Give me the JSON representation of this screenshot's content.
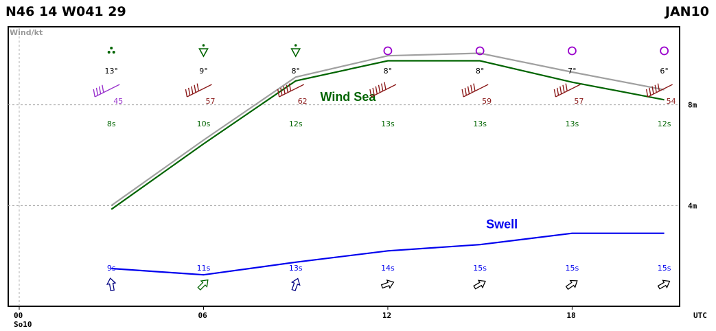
{
  "header": {
    "position": "N46 14 W041 29",
    "date": "JAN10"
  },
  "chart_data": {
    "type": "line",
    "panel_label": "Wind/kt",
    "x_ticks": [
      {
        "hour": 0,
        "label": "00",
        "sublabel": "So10"
      },
      {
        "hour": 6,
        "label": "06",
        "sublabel": ""
      },
      {
        "hour": 12,
        "label": "12",
        "sublabel": ""
      },
      {
        "hour": 18,
        "label": "18",
        "sublabel": ""
      }
    ],
    "x_unit_label": "UTC",
    "x_range": [
      0,
      21.5
    ],
    "y_range": [
      0,
      11.1
    ],
    "y_ticks": [
      {
        "value": 4,
        "label": "4m"
      },
      {
        "value": 8,
        "label": "8m"
      }
    ],
    "grid": "dashed",
    "times": [
      3,
      6,
      9,
      12,
      15,
      18,
      21
    ],
    "series": [
      {
        "name": "",
        "color": "#a0a0a0",
        "points": [
          [
            3,
            4.0
          ],
          [
            6,
            6.6
          ],
          [
            9,
            9.1
          ],
          [
            12,
            9.95
          ],
          [
            15,
            10.05
          ],
          [
            18,
            9.3
          ],
          [
            21,
            8.6
          ]
        ]
      },
      {
        "name": "Wind Sea",
        "color": "#006400",
        "points": [
          [
            3,
            3.85
          ],
          [
            6,
            6.45
          ],
          [
            9,
            8.95
          ],
          [
            12,
            9.75
          ],
          [
            15,
            9.75
          ],
          [
            18,
            8.9
          ],
          [
            21,
            8.2
          ]
        ]
      },
      {
        "name": "Swell",
        "color": "#0000ee",
        "points": [
          [
            3,
            1.5
          ],
          [
            6,
            1.25
          ],
          [
            9,
            1.75
          ],
          [
            12,
            2.2
          ],
          [
            15,
            2.45
          ],
          [
            18,
            2.9
          ],
          [
            21,
            2.9
          ]
        ]
      }
    ],
    "series_labels": [
      {
        "text": "Wind Sea",
        "color": "#006400",
        "x": 9.8,
        "y": 8.15
      },
      {
        "text": "Swell",
        "color": "#0000ee",
        "x": 15.2,
        "y": 3.1
      }
    ],
    "weather_icons": [
      "showers",
      "shower",
      "shower",
      "circle",
      "circle",
      "circle",
      "circle"
    ],
    "weather_icon_colors": [
      "#006400",
      "#006400",
      "#006400",
      "#9900cc",
      "#9900cc",
      "#9900cc",
      "#9900cc"
    ],
    "temperatures": [
      "13°",
      "9°",
      "8°",
      "8°",
      "8°",
      "7°",
      "6°"
    ],
    "wind_speeds": [
      "45",
      "57",
      "62",
      "",
      "59",
      "57",
      "54"
    ],
    "wind_colors": [
      "#9933cc",
      "#8b1a1a",
      "#8b1a1a",
      "#8b1a1a",
      "#8b1a1a",
      "#8b1a1a",
      "#8b1a1a"
    ],
    "wind_feathers": [
      4,
      5,
      5,
      6,
      5,
      5,
      5
    ],
    "wind_direction_deg": [
      250,
      250,
      250,
      250,
      250,
      250,
      255
    ],
    "wind_sea_periods": [
      "8s",
      "10s",
      "12s",
      "13s",
      "13s",
      "13s",
      "12s"
    ],
    "swell_periods": [
      "9s",
      "11s",
      "13s",
      "14s",
      "15s",
      "15s",
      "15s"
    ],
    "swell_arrow_colors": [
      "#000080",
      "#006400",
      "#000080",
      "#000000",
      "#000000",
      "#000000",
      "#000000"
    ],
    "swell_direction_deg": [
      170,
      225,
      200,
      250,
      240,
      235,
      240
    ]
  }
}
